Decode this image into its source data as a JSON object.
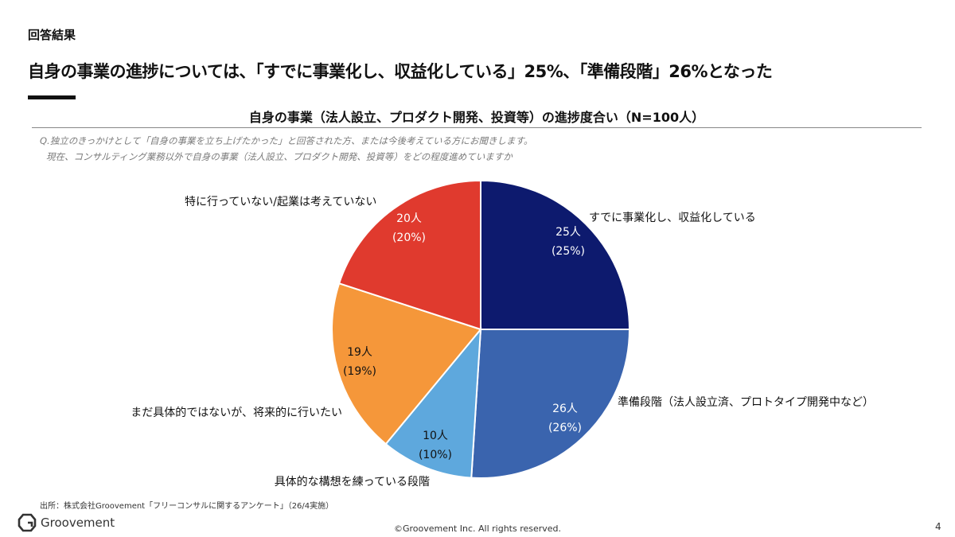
{
  "header": {
    "section_label": "回答結果",
    "headline": "自身の事業の進捗については、「すでに事業化し、収益化している」25%、「準備段階」26%となった"
  },
  "question": {
    "line1": "Q.独立のきっかけとして「自身の事業を立ち上げたかった」と回答された方、または今後考えている方にお聞きします。",
    "line2": "現在、コンサルティング業務以外で自身の事業（法人設立、プロダクト開発、投資等）をどの程度進めていますか"
  },
  "chart_data": {
    "type": "pie",
    "title": "自身の事業（法人設立、プロダクト開発、投資等）の進捗度合い（N=100人）",
    "total": 100,
    "slices": [
      {
        "label": "すでに事業化し、収益化している",
        "value": 25,
        "count_label": "25人",
        "percent_label": "(25%)",
        "color": "#0d1a6e",
        "text_color": "#ffffff"
      },
      {
        "label": "準備段階（法人設立済、プロトタイプ開発中など）",
        "value": 26,
        "count_label": "26人",
        "percent_label": "(26%)",
        "color": "#3a64ae",
        "text_color": "#ffffff"
      },
      {
        "label": "具体的な構想を練っている段階",
        "value": 10,
        "count_label": "10人",
        "percent_label": "(10%)",
        "color": "#5ea8dd",
        "text_color": "#111111"
      },
      {
        "label": "まだ具体的ではないが、将来的に行いたい",
        "value": 19,
        "count_label": "19人",
        "percent_label": "(19%)",
        "color": "#f5973a",
        "text_color": "#111111"
      },
      {
        "label": "特に行っていない/起業は考えていない",
        "value": 20,
        "count_label": "20人",
        "percent_label": "(20%)",
        "color": "#e03a2e",
        "text_color": "#ffffff"
      }
    ]
  },
  "footer": {
    "source": "出所：株式会社Groovement「フリーコンサルに関するアンケート」（26/4実施）",
    "logo_name": "Groovement",
    "copyright": "©Groovement Inc. All rights reserved.",
    "page_number": "4"
  }
}
